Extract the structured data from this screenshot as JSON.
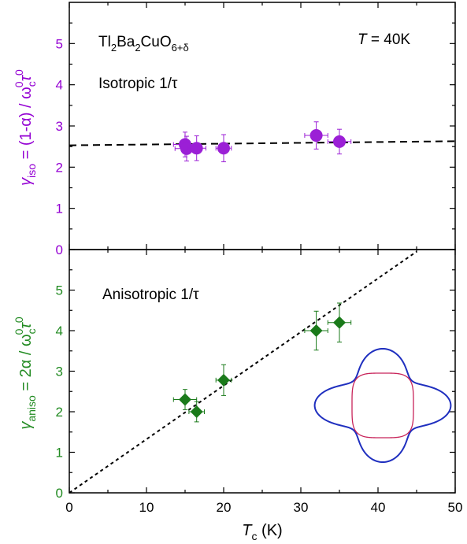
{
  "chart_data": [
    {
      "type": "scatter",
      "panel": "top",
      "title": "",
      "ylabel_color": "#9400d3",
      "marker": "circle",
      "marker_color": "#9b1fd6",
      "xlim": [
        0,
        50
      ],
      "ylim": [
        0,
        6
      ],
      "yticks": [
        "0",
        "1",
        "2",
        "3",
        "4",
        "5"
      ],
      "annotations": {
        "compound_base": "Tl",
        "compound_sub1": "2",
        "compound_mid": "Ba",
        "compound_sub2": "2",
        "compound_tail": "CuO",
        "compound_sub3": "6+δ",
        "temperature_var": "T",
        "temperature_value": " = 40K",
        "model_label": "Isotropic 1/τ"
      },
      "ylabel": {
        "gamma": "γ",
        "sub": "iso",
        "rest": " = (1-α) / ω",
        "sub2": "c",
        "sup2": "0",
        "tau": "τ",
        "sup3": "0"
      },
      "points": [
        {
          "x": 15.0,
          "y": 2.55,
          "xerr": 1.5,
          "yerr": 0.3
        },
        {
          "x": 15.2,
          "y": 2.45,
          "xerr": 1.5,
          "yerr": 0.3
        },
        {
          "x": 16.5,
          "y": 2.46,
          "xerr": 1.2,
          "yerr": 0.3
        },
        {
          "x": 20.0,
          "y": 2.46,
          "xerr": 1.0,
          "yerr": 0.33
        },
        {
          "x": 32.0,
          "y": 2.77,
          "xerr": 1.5,
          "yerr": 0.33
        },
        {
          "x": 35.0,
          "y": 2.62,
          "xerr": 1.5,
          "yerr": 0.3
        }
      ],
      "fit_line": {
        "style": "dashed",
        "x": [
          0,
          50
        ],
        "y": [
          2.53,
          2.63
        ]
      }
    },
    {
      "type": "scatter",
      "panel": "bottom",
      "title": "",
      "ylabel_color": "#228b22",
      "marker": "diamond",
      "marker_color": "#1a7a1a",
      "xlim": [
        0,
        50
      ],
      "ylim": [
        0,
        6
      ],
      "xticks": [
        "0",
        "10",
        "20",
        "30",
        "40",
        "50"
      ],
      "yticks": [
        "0",
        "1",
        "2",
        "3",
        "4",
        "5"
      ],
      "xlabel": {
        "var": "T",
        "sub": "c",
        "unit": " (K)"
      },
      "annotations": {
        "model_label": "Anisotropic 1/τ"
      },
      "ylabel": {
        "gamma": "γ",
        "sub": "aniso",
        "rest": " = 2α / ω",
        "sub2": "c",
        "sup2": "0",
        "tau": "τ",
        "sup3": "0"
      },
      "points": [
        {
          "x": 15.0,
          "y": 2.3,
          "xerr": 1.5,
          "yerr": 0.25
        },
        {
          "x": 16.5,
          "y": 2.0,
          "xerr": 1.0,
          "yerr": 0.25
        },
        {
          "x": 20.0,
          "y": 2.78,
          "xerr": 1.0,
          "yerr": 0.38
        },
        {
          "x": 32.0,
          "y": 4.0,
          "xerr": 1.5,
          "yerr": 0.48
        },
        {
          "x": 35.0,
          "y": 4.2,
          "xerr": 1.5,
          "yerr": 0.48
        }
      ],
      "fit_line": {
        "style": "dotted",
        "x": [
          0,
          45
        ],
        "y": [
          0,
          5.95
        ]
      },
      "inset": {
        "outer_color": "#1f2fbf",
        "inner_color": "#c8245a",
        "outer_shape": "four-lobed (cos 4φ) Fermi surface",
        "inner_shape": "rounded square"
      }
    }
  ]
}
